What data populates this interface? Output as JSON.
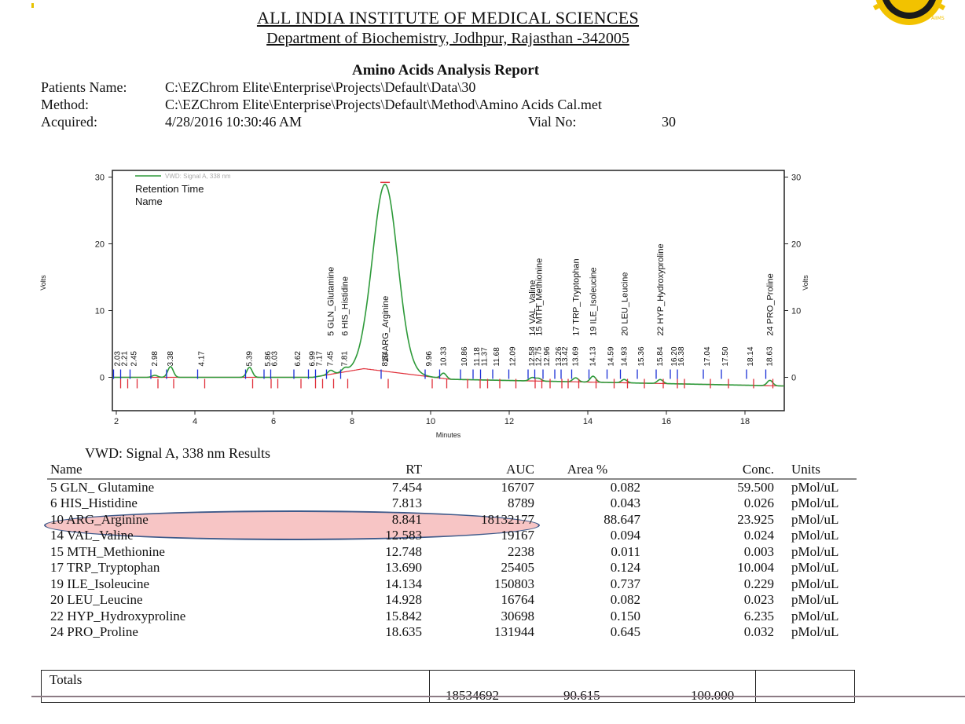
{
  "header": {
    "institution": "ALL INDIA INSTITUTE OF MEDICAL SCIENCES",
    "department": "Department of Biochemistry, Jodhpur, Rajasthan -342005",
    "report_title": "Amino Acids Analysis Report"
  },
  "meta": {
    "patient_label": "Patients Name:",
    "patient_value": "C:\\EZChrom Elite\\Enterprise\\Projects\\Default\\Data\\30",
    "method_label": "Method:",
    "method_value": "C:\\EZChrom Elite\\Enterprise\\Projects\\Default\\Method\\Amino Acids Cal.met",
    "acquired_label": "Acquired:",
    "acquired_value": "4/28/2016 10:30:46 AM",
    "vial_label": "Vial No:",
    "vial_value": "30"
  },
  "chart_data": {
    "type": "line",
    "series_legend": "VWD: Signal A, 338 nm",
    "legend_lines": [
      "Retention Time",
      "Name"
    ],
    "xlabel": "Minutes",
    "ylabel": "Volts",
    "xlim": [
      1.9,
      19.0
    ],
    "ylim": [
      -5,
      31
    ],
    "x_ticks": [
      2,
      4,
      6,
      8,
      10,
      12,
      14,
      16,
      18
    ],
    "y_ticks": [
      0,
      10,
      20,
      30
    ],
    "peaks": [
      {
        "rt": 7.454,
        "height": 0.6,
        "label": "5 GLN_Glutamine"
      },
      {
        "rt": 7.813,
        "height": 0.5,
        "label": "6 HIS_Histidine"
      },
      {
        "rt": 8.841,
        "height": 28.0,
        "label": "10 ARG_Arginine"
      },
      {
        "rt": 12.583,
        "height": 0.5,
        "label": "14 VAL_Valine"
      },
      {
        "rt": 12.748,
        "height": 0.4,
        "label": "15 MTH_Methionine"
      },
      {
        "rt": 13.69,
        "height": 0.6,
        "label": "17 TRP_Tryptophan"
      },
      {
        "rt": 14.134,
        "height": 0.9,
        "label": "19 ILE_Isoleucine"
      },
      {
        "rt": 14.928,
        "height": 0.5,
        "label": "20 LEU_Leucine"
      },
      {
        "rt": 15.842,
        "height": 0.6,
        "label": "22 HYP_Hydroxyproline"
      },
      {
        "rt": 18.635,
        "height": 0.8,
        "label": "24 PRO_Proline"
      }
    ],
    "minor_peaks": [
      {
        "rt": 2.98,
        "height": 0.3
      },
      {
        "rt": 3.38,
        "height": 1.6
      },
      {
        "rt": 5.39,
        "height": 1.5
      },
      {
        "rt": 10.33,
        "height": 0.8
      }
    ],
    "rt_labels": [
      "2.03",
      "2.21",
      "2.45",
      "2.98",
      "3.38",
      "4.17",
      "5.39",
      "5.86",
      "6.03",
      "6.62",
      "6.99",
      "7.17",
      "7.45",
      "7.81",
      "8.84",
      "9.96",
      "10.33",
      "10.86",
      "11.18",
      "11.37",
      "11.68",
      "12.09",
      "12.58",
      "12.75",
      "12.96",
      "13.26",
      "13.42",
      "13.69",
      "14.13",
      "14.59",
      "14.93",
      "15.36",
      "15.84",
      "16.20",
      "16.38",
      "17.04",
      "17.50",
      "18.14",
      "18.63"
    ]
  },
  "results": {
    "title": "VWD: Signal A, 338 nm Results",
    "columns": [
      "Name",
      "RT",
      "AUC",
      "Area %",
      "Conc.",
      "Units"
    ],
    "rows": [
      [
        "5 GLN_ Glutamine",
        "7.454",
        "16707",
        "0.082",
        "59.500",
        "pMol/uL"
      ],
      [
        "6 HIS_Histidine",
        "7.813",
        "8789",
        "0.043",
        "0.026",
        "pMol/uL"
      ],
      [
        "10 ARG_Arginine",
        "8.841",
        "18132177",
        "88.647",
        "23.925",
        "pMol/uL"
      ],
      [
        "14 VAL_Valine",
        "12.583",
        "19167",
        "0.094",
        "0.024",
        "pMol/uL"
      ],
      [
        "15 MTH_Methionine",
        "12.748",
        "2238",
        "0.011",
        "0.003",
        "pMol/uL"
      ],
      [
        "17 TRP_Tryptophan",
        "13.690",
        "25405",
        "0.124",
        "10.004",
        "pMol/uL"
      ],
      [
        "19 ILE_Isoleucine",
        "14.134",
        "150803",
        "0.737",
        "0.229",
        "pMol/uL"
      ],
      [
        "20 LEU_Leucine",
        "14.928",
        "16764",
        "0.082",
        "0.023",
        "pMol/uL"
      ],
      [
        "22 HYP_Hydroxyproline",
        "15.842",
        "30698",
        "0.150",
        "6.235",
        "pMol/uL"
      ],
      [
        "24 PRO_Proline",
        "18.635",
        "131944",
        "0.645",
        "0.032",
        "pMol/uL"
      ]
    ],
    "highlighted_row": 2,
    "totals_label": "Totals",
    "totals_auc": "18534692",
    "totals_area": "90.615",
    "totals_conc": "100.000"
  },
  "colors": {
    "signal": "#2e9a3a",
    "baseline": "#e0303a",
    "tick_blue": "#1a2fd6",
    "tick_red": "#e0303a",
    "highlight_fill": "#f29a9a",
    "highlight_border": "#3f5a8a",
    "logo": "#f2c200"
  }
}
